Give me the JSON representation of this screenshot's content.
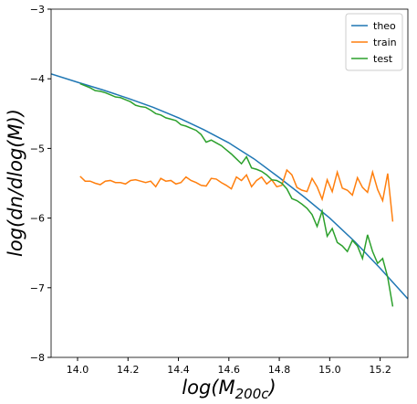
{
  "chart_data": {
    "type": "line",
    "x_label": {
      "main": "log(M",
      "sub": "200c",
      "close": ")"
    },
    "y_label": "log(dn/dlog(M))",
    "xlim": [
      13.895,
      15.31
    ],
    "ylim": [
      -8,
      -3
    ],
    "xticks": [
      {
        "value": 14.0,
        "label": "14.0"
      },
      {
        "value": 14.2,
        "label": "14.2"
      },
      {
        "value": 14.4,
        "label": "14.4"
      },
      {
        "value": 14.6,
        "label": "14.6"
      },
      {
        "value": 14.8,
        "label": "14.8"
      },
      {
        "value": 15.0,
        "label": "15.0"
      },
      {
        "value": 15.2,
        "label": "15.2"
      }
    ],
    "yticks": [
      {
        "value": -8,
        "label": "−8"
      },
      {
        "value": -7,
        "label": "−7"
      },
      {
        "value": -6,
        "label": "−6"
      },
      {
        "value": -5,
        "label": "−5"
      },
      {
        "value": -4,
        "label": "−4"
      },
      {
        "value": -3,
        "label": "−3"
      }
    ],
    "legend": "upper right",
    "series": [
      {
        "name": "theo",
        "color": "#1f77b4",
        "x": [
          13.895,
          14.0,
          14.1,
          14.2,
          14.3,
          14.4,
          14.5,
          14.6,
          14.7,
          14.8,
          14.9,
          15.0,
          15.1,
          15.2,
          15.31
        ],
        "values": [
          -3.93,
          -4.05,
          -4.16,
          -4.28,
          -4.41,
          -4.56,
          -4.73,
          -4.92,
          -5.15,
          -5.42,
          -5.7,
          -6.0,
          -6.34,
          -6.72,
          -7.16
        ]
      },
      {
        "name": "train",
        "color": "#ff7f0e",
        "x": [
          14.01,
          14.03,
          14.05,
          14.07,
          14.09,
          14.11,
          14.13,
          14.15,
          14.17,
          14.19,
          14.21,
          14.23,
          14.25,
          14.27,
          14.29,
          14.31,
          14.33,
          14.35,
          14.37,
          14.39,
          14.41,
          14.43,
          14.45,
          14.47,
          14.49,
          14.51,
          14.53,
          14.55,
          14.57,
          14.59,
          14.61,
          14.63,
          14.65,
          14.67,
          14.69,
          14.71,
          14.73,
          14.75,
          14.77,
          14.79,
          14.81,
          14.83,
          14.85,
          14.87,
          14.89,
          14.91,
          14.93,
          14.95,
          14.97,
          14.99,
          15.01,
          15.03,
          15.05,
          15.07,
          15.09,
          15.11,
          15.13,
          15.15,
          15.17,
          15.19,
          15.21,
          15.23,
          15.25
        ],
        "values": [
          -5.4,
          -5.47,
          -5.47,
          -5.5,
          -5.52,
          -5.47,
          -5.46,
          -5.49,
          -5.49,
          -5.51,
          -5.46,
          -5.45,
          -5.47,
          -5.49,
          -5.47,
          -5.55,
          -5.43,
          -5.47,
          -5.46,
          -5.51,
          -5.49,
          -5.41,
          -5.46,
          -5.49,
          -5.53,
          -5.54,
          -5.43,
          -5.44,
          -5.49,
          -5.53,
          -5.58,
          -5.41,
          -5.46,
          -5.38,
          -5.55,
          -5.46,
          -5.41,
          -5.51,
          -5.45,
          -5.55,
          -5.53,
          -5.31,
          -5.38,
          -5.56,
          -5.6,
          -5.62,
          -5.43,
          -5.55,
          -5.73,
          -5.45,
          -5.62,
          -5.34,
          -5.57,
          -5.6,
          -5.67,
          -5.42,
          -5.56,
          -5.63,
          -5.34,
          -5.59,
          -5.75,
          -5.36,
          -6.05
        ]
      },
      {
        "name": "test",
        "color": "#2ca02c",
        "x": [
          14.01,
          14.03,
          14.05,
          14.07,
          14.09,
          14.11,
          14.13,
          14.15,
          14.17,
          14.19,
          14.21,
          14.23,
          14.25,
          14.27,
          14.29,
          14.31,
          14.33,
          14.35,
          14.37,
          14.39,
          14.41,
          14.43,
          14.45,
          14.47,
          14.49,
          14.51,
          14.53,
          14.55,
          14.57,
          14.59,
          14.61,
          14.63,
          14.65,
          14.67,
          14.69,
          14.71,
          14.73,
          14.75,
          14.77,
          14.79,
          14.81,
          14.83,
          14.85,
          14.87,
          14.89,
          14.91,
          14.93,
          14.95,
          14.97,
          14.99,
          15.01,
          15.03,
          15.05,
          15.07,
          15.09,
          15.11,
          15.13,
          15.15,
          15.17,
          15.19,
          15.21,
          15.23,
          15.25
        ],
        "values": [
          -4.07,
          -4.1,
          -4.13,
          -4.17,
          -4.18,
          -4.2,
          -4.23,
          -4.26,
          -4.27,
          -4.3,
          -4.33,
          -4.38,
          -4.4,
          -4.41,
          -4.45,
          -4.5,
          -4.52,
          -4.56,
          -4.58,
          -4.6,
          -4.66,
          -4.68,
          -4.71,
          -4.74,
          -4.8,
          -4.91,
          -4.88,
          -4.92,
          -4.96,
          -5.02,
          -5.08,
          -5.15,
          -5.22,
          -5.12,
          -5.28,
          -5.3,
          -5.33,
          -5.38,
          -5.45,
          -5.46,
          -5.5,
          -5.58,
          -5.72,
          -5.75,
          -5.8,
          -5.86,
          -5.95,
          -6.12,
          -5.9,
          -6.26,
          -6.15,
          -6.35,
          -6.4,
          -6.48,
          -6.32,
          -6.4,
          -6.58,
          -6.24,
          -6.48,
          -6.65,
          -6.58,
          -6.85,
          -7.27
        ]
      }
    ]
  }
}
